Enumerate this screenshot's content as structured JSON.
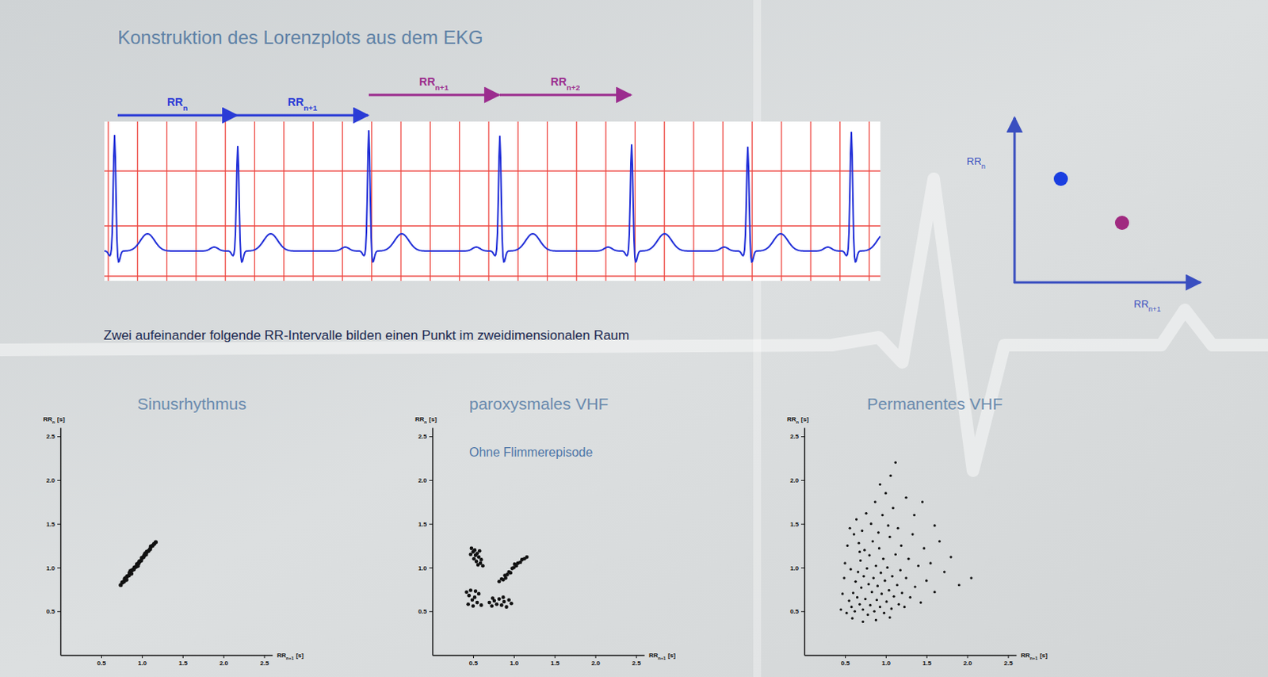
{
  "title": "Konstruktion des Lorenzplots aus dem EKG",
  "intervals": [
    {
      "text": "RR",
      "subscript": "n"
    },
    {
      "text": "RR",
      "subscript": "n+1"
    },
    {
      "text": "RR",
      "subscript": "n+1"
    },
    {
      "text": "RR",
      "subscript": "n+2"
    }
  ],
  "schematic": {
    "y_label": {
      "text": "RR",
      "subscript": "n"
    },
    "x_label": {
      "text": "RR",
      "subscript": "n+1"
    }
  },
  "caption": "Zwei aufeinander folgende RR-Intervalle bilden einen Punkt im zweidimensionalen Raum",
  "chart_data": [
    {
      "type": "scatter",
      "title": "Sinusrhythmus",
      "xlabel": {
        "text": "RR",
        "subscript": "n+1",
        "unit": "[s]"
      },
      "ylabel": {
        "text": "RR",
        "subscript": "n",
        "unit": "[s]"
      },
      "color": "#111111",
      "marker": "circle",
      "xlim": [
        0,
        2.6
      ],
      "ylim": [
        0,
        2.6
      ],
      "xticks": [
        0.5,
        {
          "value": 1,
          "label": "1.0"
        },
        1.5,
        {
          "value": 2,
          "label": "2.0"
        },
        2.5
      ],
      "yticks": [
        0.5,
        {
          "value": 1,
          "label": "1.0"
        },
        1.5,
        {
          "value": 2,
          "label": "2.0"
        },
        2.5
      ],
      "x": [
        0.74,
        0.76,
        0.78,
        0.79,
        0.81,
        0.82,
        0.84,
        0.85,
        0.87,
        0.88,
        0.9,
        0.91,
        0.93,
        0.94,
        0.96,
        0.97,
        0.99,
        1.0,
        1.02,
        1.03,
        1.05,
        1.06,
        1.08,
        1.1,
        1.11,
        1.13,
        1.15,
        1.17,
        0.86,
        0.95,
        1.04,
        0.8
      ],
      "values": [
        0.8,
        0.83,
        0.84,
        0.87,
        0.86,
        0.9,
        0.91,
        0.94,
        0.93,
        0.97,
        0.98,
        1.0,
        1.01,
        1.04,
        1.05,
        1.07,
        1.08,
        1.11,
        1.12,
        1.14,
        1.15,
        1.18,
        1.19,
        1.21,
        1.24,
        1.25,
        1.27,
        1.29,
        0.96,
        1.02,
        1.16,
        0.88
      ]
    },
    {
      "type": "scatter",
      "title": "paroxysmales VHF",
      "subtitle": "Ohne Flimmerepisode",
      "xlabel": {
        "text": "RR",
        "subscript": "n+1",
        "unit": "[s]"
      },
      "ylabel": {
        "text": "RR",
        "subscript": "n",
        "unit": "[s]"
      },
      "color": "#111111",
      "marker": "circle",
      "xlim": [
        0,
        2.6
      ],
      "ylim": [
        0,
        2.6
      ],
      "xticks": [
        0.5,
        {
          "value": 1,
          "label": "1.0"
        },
        1.5,
        {
          "value": 2,
          "label": "2.0"
        },
        2.5
      ],
      "yticks": [
        0.5,
        {
          "value": 1,
          "label": "1.0"
        },
        1.5,
        {
          "value": 2,
          "label": "2.0"
        },
        2.5
      ],
      "x": [
        0.48,
        0.5,
        0.52,
        0.53,
        0.55,
        0.51,
        0.54,
        0.57,
        0.56,
        0.59,
        0.6,
        0.62,
        0.47,
        0.58,
        0.82,
        0.85,
        0.87,
        0.89,
        0.92,
        0.94,
        0.96,
        0.98,
        1.0,
        1.03,
        1.05,
        1.08,
        1.1,
        1.13,
        1.16,
        0.9,
        1.01,
        0.42,
        0.45,
        0.47,
        0.49,
        0.52,
        0.55,
        0.57,
        0.44,
        0.6,
        0.5,
        0.53,
        0.7,
        0.73,
        0.76,
        0.79,
        0.82,
        0.85,
        0.88,
        0.91,
        0.94,
        0.97,
        0.74,
        0.87
      ],
      "values": [
        1.22,
        1.18,
        1.2,
        1.14,
        1.16,
        1.1,
        1.07,
        1.12,
        1.03,
        1.05,
        1.09,
        1.02,
        1.15,
        1.19,
        0.84,
        0.87,
        0.86,
        0.91,
        0.92,
        0.95,
        0.94,
        0.99,
        1.0,
        1.02,
        1.05,
        1.06,
        1.09,
        1.1,
        1.12,
        0.88,
        1.04,
        0.72,
        0.68,
        0.74,
        0.63,
        0.66,
        0.6,
        0.7,
        0.58,
        0.57,
        0.56,
        0.73,
        0.6,
        0.56,
        0.62,
        0.58,
        0.64,
        0.57,
        0.61,
        0.55,
        0.63,
        0.59,
        0.65,
        0.66
      ]
    },
    {
      "type": "scatter",
      "title": "Permanentes VHF",
      "xlabel": {
        "text": "RR",
        "subscript": "n+1",
        "unit": "[s]"
      },
      "ylabel": {
        "text": "RR",
        "subscript": "n",
        "unit": "[s]"
      },
      "color": "#111111",
      "marker": "circle",
      "xlim": [
        0,
        2.6
      ],
      "ylim": [
        0,
        2.6
      ],
      "xticks": [
        0.5,
        {
          "value": 1,
          "label": "1.0"
        },
        1.5,
        {
          "value": 2,
          "label": "2.0"
        },
        2.5
      ],
      "yticks": [
        0.5,
        {
          "value": 1,
          "label": "1.0"
        },
        1.5,
        {
          "value": 2,
          "label": "2.0"
        },
        2.5
      ],
      "x": [
        0.52,
        0.55,
        0.58,
        0.6,
        0.62,
        0.63,
        0.65,
        0.66,
        0.68,
        0.69,
        0.7,
        0.72,
        0.73,
        0.74,
        0.75,
        0.77,
        0.78,
        0.79,
        0.8,
        0.81,
        0.83,
        0.84,
        0.85,
        0.86,
        0.88,
        0.89,
        0.9,
        0.92,
        0.93,
        0.94,
        0.95,
        0.97,
        0.98,
        0.99,
        1.01,
        1.02,
        1.04,
        1.05,
        1.07,
        1.08,
        1.1,
        1.12,
        1.14,
        1.16,
        1.18,
        1.2,
        0.45,
        0.47,
        0.49,
        0.5,
        0.53,
        0.56,
        0.59,
        0.61,
        0.64,
        0.67,
        0.71,
        0.76,
        0.82,
        0.87,
        0.91,
        0.96,
        1.0,
        1.03,
        1.09,
        1.12,
        1.06,
        0.93,
        1.15,
        1.19,
        1.23,
        1.25,
        1.28,
        1.3,
        1.33,
        1.36,
        1.4,
        1.43,
        1.47,
        1.5,
        1.55,
        1.6,
        1.66,
        1.72,
        1.8,
        1.9,
        2.05,
        1.35,
        1.45,
        1.25,
        0.72,
        0.88,
        1.05,
        0.57,
        0.68,
        1.6
      ],
      "values": [
        0.48,
        0.62,
        0.55,
        0.71,
        0.5,
        0.84,
        0.66,
        0.95,
        0.58,
        1.08,
        0.77,
        0.52,
        0.9,
        1.2,
        0.64,
        0.99,
        0.46,
        0.81,
        1.14,
        0.57,
        0.72,
        1.3,
        0.88,
        0.5,
        1.02,
        0.63,
        0.79,
        1.22,
        0.55,
        0.94,
        0.7,
        1.1,
        0.48,
        0.85,
        0.61,
        1.0,
        0.74,
        1.35,
        0.53,
        0.9,
        0.67,
        1.15,
        0.8,
        0.58,
        0.97,
        0.71,
        0.52,
        0.7,
        0.88,
        1.05,
        1.25,
        1.45,
        0.42,
        1.38,
        1.55,
        1.28,
        1.42,
        1.62,
        1.5,
        1.75,
        1.4,
        1.6,
        1.85,
        1.48,
        1.68,
        2.2,
        2.05,
        1.95,
        1.45,
        1.25,
        0.55,
        0.88,
        1.1,
        0.66,
        1.38,
        0.78,
        1.02,
        0.6,
        1.22,
        0.85,
        1.05,
        0.72,
        1.3,
        0.95,
        1.12,
        0.8,
        0.88,
        1.6,
        1.75,
        1.8,
        0.38,
        0.4,
        0.43,
        0.98,
        1.18,
        1.48
      ]
    }
  ]
}
